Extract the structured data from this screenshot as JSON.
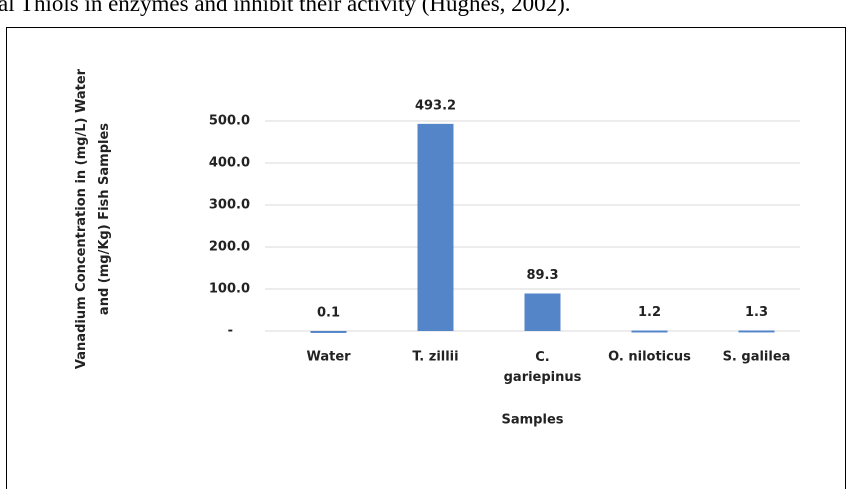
{
  "text": "al Thiols in enzymes and inhibit their activity (Hughes, 2002).",
  "chart_data": {
    "type": "bar",
    "categories": [
      "Water",
      "T. zillii",
      "C. gariepinus",
      "O. niloticus",
      "S. galilea"
    ],
    "values": [
      0.1,
      493.2,
      89.3,
      1.2,
      1.3
    ],
    "color": "#5585c9",
    "xlabel": "Samples",
    "ylabel": "Vanadium Concentration in (mg/L) Water and (mg/Kg) Fish Samples",
    "ylim": [
      0,
      500
    ],
    "yticks": [
      {
        "value": 0,
        "label": "-"
      },
      {
        "value": 100,
        "label": "100.0"
      },
      {
        "value": 200,
        "label": "200.0"
      },
      {
        "value": 300,
        "label": "300.0"
      },
      {
        "value": 400,
        "label": "400.0"
      },
      {
        "value": 500,
        "label": "500.0"
      }
    ],
    "grid": true
  }
}
